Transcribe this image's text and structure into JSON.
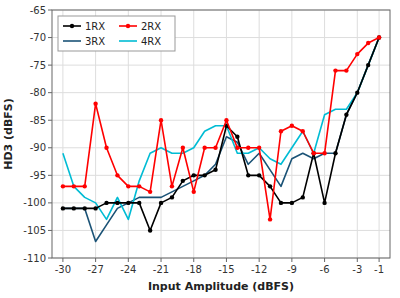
{
  "chart_data": {
    "type": "line",
    "x_label": "Input Amplitude (dBFS)",
    "y_label": "HD3 (dBFS)",
    "x": [
      -30,
      -29,
      -28,
      -27,
      -26,
      -25,
      -24,
      -23,
      -22,
      -21,
      -20,
      -19,
      -18,
      -17,
      -16,
      -15,
      -14,
      -13,
      -12,
      -11,
      -10,
      -9,
      -8,
      -7,
      -6,
      -5,
      -4,
      -3,
      -2,
      -1
    ],
    "series": [
      {
        "name": "1RX",
        "color": "#000000",
        "marker": "circle",
        "values": [
          -101,
          -101,
          -101,
          -101,
          -100,
          -100,
          -100,
          -100,
          -105,
          -100,
          -99,
          -96,
          -95,
          -95,
          -94,
          -86,
          -88,
          -95,
          -95,
          -97,
          -100,
          -100,
          -99,
          -91,
          -100,
          -91,
          -84,
          -80,
          -75,
          -70
        ]
      },
      {
        "name": "2RX",
        "color": "#ff0000",
        "marker": "circle",
        "values": [
          -97,
          -97,
          -97,
          -82,
          -90,
          -95,
          -97,
          -97,
          -98,
          -85,
          -97,
          -90,
          -98,
          -90,
          -90,
          -85,
          -90,
          -90,
          -90,
          -103,
          -87,
          -86,
          -87,
          -91,
          -91,
          -76,
          -76,
          -73,
          -71,
          -70
        ]
      },
      {
        "name": "3RX",
        "color": "#1a5276",
        "values": [
          -101,
          -101,
          -101,
          -107,
          -104,
          -101,
          -100,
          -99,
          -99,
          -99,
          -98,
          -97,
          -96,
          -95,
          -93,
          -88,
          -89,
          -93,
          -91,
          -94,
          -97,
          -92,
          -91,
          -92,
          -91,
          -91,
          -84,
          -80,
          -75,
          -70
        ]
      },
      {
        "name": "4RX",
        "color": "#00bcd4",
        "values": [
          -91,
          -97,
          -99,
          -100,
          -103,
          -99,
          -103,
          -96,
          -91,
          -90,
          -91,
          -91,
          -90,
          -87,
          -86,
          -86,
          -91,
          -91,
          -90,
          -92,
          -93,
          -90,
          -87,
          -91,
          -84,
          -83,
          -83,
          -80,
          -75,
          -70
        ]
      }
    ],
    "xlim": [
      -31,
      0
    ],
    "ylim": [
      -110,
      -65
    ],
    "xticks": [
      -30,
      -27,
      -24,
      -21,
      -18,
      -15,
      -12,
      -9,
      -6,
      -3,
      -1
    ],
    "yticks": [
      -110,
      -105,
      -100,
      -95,
      -90,
      -85,
      -80,
      -75,
      -70,
      -65
    ],
    "grid": true,
    "legend": "upper left"
  }
}
